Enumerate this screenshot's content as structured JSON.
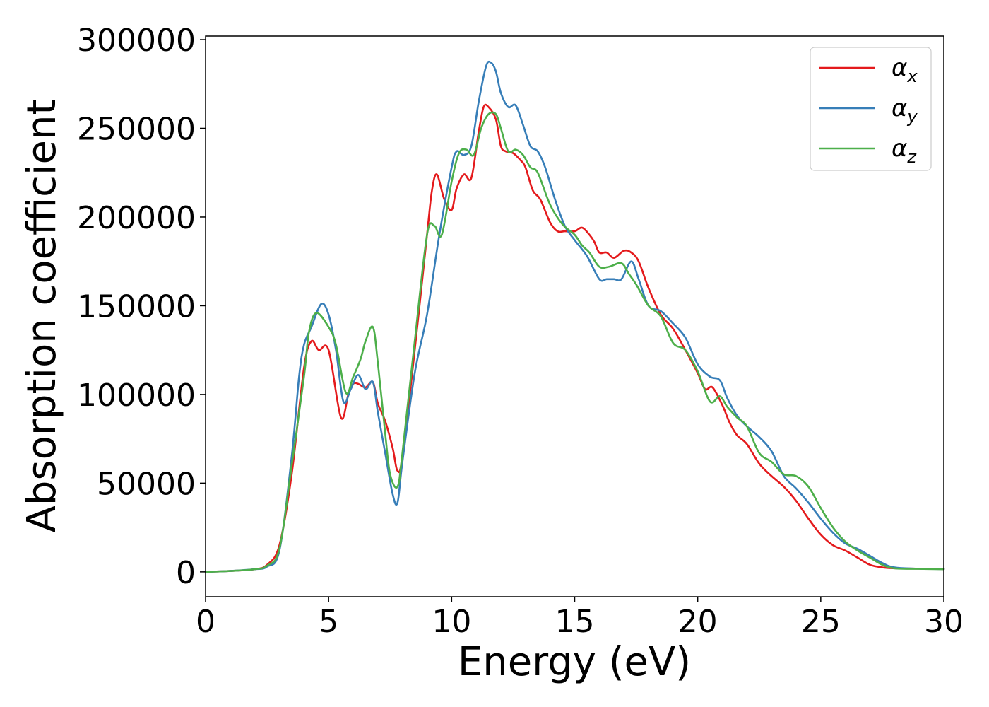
{
  "chart_data": {
    "type": "line",
    "xlabel": "Energy (eV)",
    "ylabel": "Absorption coefficient",
    "xlim": [
      0,
      30
    ],
    "ylim": [
      -14000,
      302000
    ],
    "xticks": [
      0,
      5,
      10,
      15,
      20,
      25,
      30
    ],
    "yticks": [
      0,
      50000,
      100000,
      150000,
      200000,
      250000,
      300000
    ],
    "grid": false,
    "legend_position": "top-right",
    "series": [
      {
        "name": "α_x",
        "legend_base": "α",
        "legend_sub": "x",
        "color": "#e41a1c",
        "x": [
          0,
          1,
          2,
          2.5,
          3,
          3.5,
          4,
          4.3,
          4.6,
          5,
          5.5,
          5.8,
          6,
          6.2,
          6.5,
          6.8,
          7,
          7.3,
          7.6,
          7.8,
          8,
          8.5,
          9,
          9.2,
          9.4,
          9.7,
          10,
          10.2,
          10.5,
          10.8,
          11.1,
          11.3,
          11.5,
          11.8,
          12,
          12.2,
          12.5,
          12.8,
          13,
          13.3,
          13.6,
          14,
          14.3,
          14.6,
          15,
          15.3,
          15.6,
          15.8,
          16,
          16.3,
          16.6,
          17,
          17.3,
          17.6,
          18,
          18.5,
          19,
          19.5,
          20,
          20.3,
          20.6,
          21,
          21.3,
          21.6,
          22,
          22.5,
          23,
          23.5,
          24,
          24.5,
          25,
          25.5,
          26,
          26.5,
          27,
          27.5,
          28,
          29,
          30
        ],
        "y": [
          0,
          500,
          1500,
          4000,
          15000,
          55000,
          115000,
          130000,
          125000,
          125000,
          87000,
          100000,
          106000,
          106000,
          104000,
          107000,
          95000,
          85000,
          70000,
          57000,
          65000,
          125000,
          190000,
          215000,
          224000,
          210000,
          204000,
          216000,
          224000,
          222000,
          248000,
          262000,
          262000,
          255000,
          240000,
          237000,
          236000,
          232000,
          228000,
          215000,
          210000,
          197000,
          192000,
          192000,
          192000,
          194000,
          190000,
          186000,
          180000,
          180000,
          177000,
          181000,
          180000,
          175000,
          160000,
          145000,
          137000,
          125000,
          112000,
          103000,
          104000,
          94000,
          84000,
          77000,
          72000,
          61000,
          54000,
          48000,
          40000,
          30000,
          21000,
          15000,
          12000,
          8000,
          4000,
          2500,
          2000,
          1800,
          1600
        ]
      },
      {
        "name": "α_y",
        "legend_base": "α",
        "legend_sub": "y",
        "color": "#377eb8",
        "x": [
          0,
          1,
          2,
          2.5,
          3,
          3.5,
          3.8,
          4,
          4.3,
          4.7,
          5,
          5.3,
          5.6,
          5.9,
          6.2,
          6.5,
          6.8,
          7,
          7.3,
          7.6,
          7.8,
          8,
          8.5,
          9,
          9.5,
          10,
          10.2,
          10.5,
          10.8,
          11.1,
          11.4,
          11.6,
          11.8,
          12,
          12.3,
          12.6,
          12.9,
          13.2,
          13.5,
          13.8,
          14.2,
          14.6,
          15,
          15.5,
          16,
          16.3,
          16.6,
          16.9,
          17.3,
          17.6,
          18,
          18.5,
          19,
          19.5,
          20,
          20.5,
          20.9,
          21.2,
          21.6,
          22,
          22.5,
          23,
          23.5,
          24,
          24.5,
          25,
          25.5,
          26,
          26.5,
          27,
          27.5,
          28,
          29,
          30
        ],
        "y": [
          0,
          500,
          1500,
          3000,
          12000,
          65000,
          110000,
          128000,
          138000,
          151000,
          145000,
          125000,
          96000,
          103000,
          111000,
          103000,
          107000,
          90000,
          67000,
          44000,
          39000,
          62000,
          112000,
          145000,
          190000,
          228000,
          237000,
          235000,
          240000,
          265000,
          285000,
          287000,
          282000,
          270000,
          262000,
          263000,
          252000,
          240000,
          237000,
          228000,
          210000,
          195000,
          187000,
          178000,
          165000,
          165000,
          165000,
          165000,
          175000,
          165000,
          150000,
          147000,
          140000,
          132000,
          117000,
          110000,
          108000,
          98000,
          88000,
          82000,
          76000,
          68000,
          54000,
          47000,
          39000,
          30000,
          22000,
          16000,
          13000,
          9000,
          5000,
          2500,
          1800,
          1600
        ]
      },
      {
        "name": "α_z",
        "legend_base": "α",
        "legend_sub": "z",
        "color": "#4daf4a",
        "x": [
          0,
          1,
          2,
          2.5,
          3,
          3.5,
          4,
          4.2,
          4.5,
          5,
          5.3,
          5.7,
          6,
          6.3,
          6.5,
          6.8,
          7,
          7.3,
          7.5,
          7.8,
          8,
          8.5,
          9,
          9.3,
          9.6,
          10,
          10.3,
          10.6,
          10.9,
          11.2,
          11.5,
          11.8,
          12,
          12.3,
          12.6,
          12.9,
          13.2,
          13.5,
          14,
          14.5,
          15,
          15.3,
          15.6,
          16,
          16.4,
          16.9,
          17.2,
          17.5,
          18,
          18.5,
          19,
          19.5,
          20,
          20.5,
          20.9,
          21.2,
          21.6,
          22,
          22.5,
          23,
          23.5,
          24,
          24.5,
          25,
          25.5,
          26,
          26.5,
          27,
          27.5,
          28,
          29,
          30
        ],
        "y": [
          0,
          500,
          1500,
          3500,
          13000,
          60000,
          110000,
          135000,
          146000,
          138000,
          128000,
          101000,
          110000,
          120000,
          130000,
          138000,
          118000,
          78000,
          55000,
          48000,
          67000,
          130000,
          190000,
          195000,
          190000,
          220000,
          236000,
          238000,
          235000,
          250000,
          258000,
          258000,
          250000,
          237000,
          238000,
          235000,
          228000,
          225000,
          207000,
          196000,
          190000,
          184000,
          180000,
          172000,
          172000,
          174000,
          168000,
          162000,
          150000,
          144000,
          129000,
          125000,
          113000,
          96000,
          99000,
          93000,
          87000,
          82000,
          67000,
          62000,
          55000,
          54000,
          48000,
          36000,
          25000,
          17000,
          12000,
          8000,
          4000,
          2000,
          1700,
          1500
        ]
      }
    ]
  }
}
